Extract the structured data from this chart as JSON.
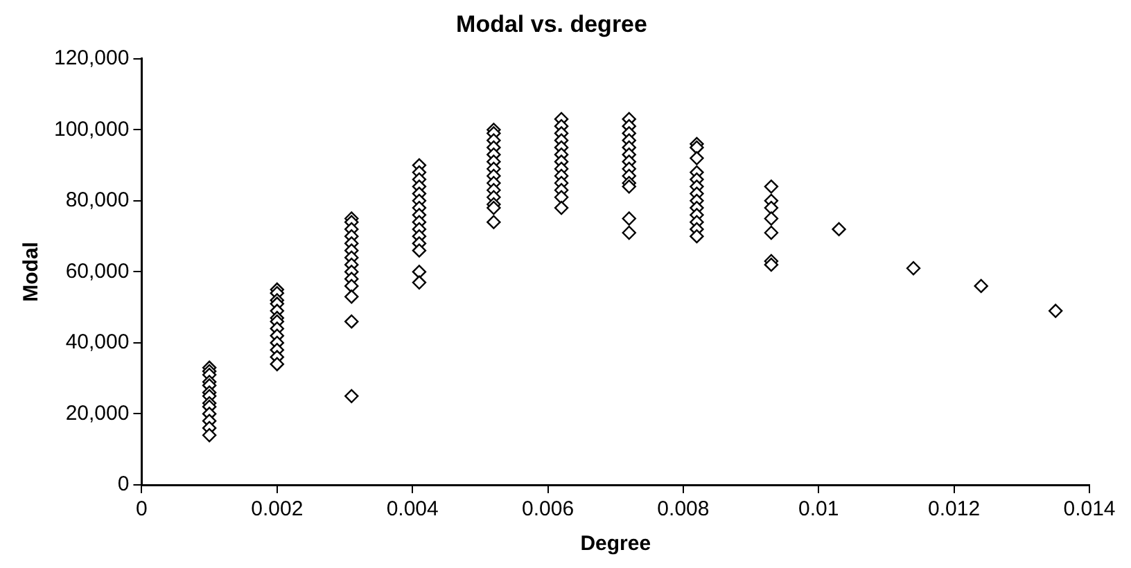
{
  "chart_data": {
    "type": "scatter",
    "title": "Modal vs. degree",
    "xlabel": "Degree",
    "ylabel": "Modal",
    "series": [
      {
        "color": "#000000",
        "x": [
          0.001,
          0.001,
          0.001,
          0.001,
          0.001,
          0.001,
          0.001,
          0.001,
          0.001,
          0.001,
          0.001,
          0.001,
          0.001,
          0.002,
          0.002,
          0.002,
          0.002,
          0.002,
          0.002,
          0.002,
          0.002,
          0.002,
          0.002,
          0.002,
          0.002,
          0.002,
          0.0031,
          0.0031,
          0.0031,
          0.0031,
          0.0031,
          0.0031,
          0.0031,
          0.0031,
          0.0031,
          0.0031,
          0.0031,
          0.0031,
          0.0031,
          0.0031,
          0.0041,
          0.0041,
          0.0041,
          0.0041,
          0.0041,
          0.0041,
          0.0041,
          0.0041,
          0.0041,
          0.0041,
          0.0041,
          0.0041,
          0.0041,
          0.0041,
          0.0041,
          0.0052,
          0.0052,
          0.0052,
          0.0052,
          0.0052,
          0.0052,
          0.0052,
          0.0052,
          0.0052,
          0.0052,
          0.0052,
          0.0052,
          0.0052,
          0.0052,
          0.0062,
          0.0062,
          0.0062,
          0.0062,
          0.0062,
          0.0062,
          0.0062,
          0.0062,
          0.0062,
          0.0062,
          0.0062,
          0.0062,
          0.0062,
          0.0072,
          0.0072,
          0.0072,
          0.0072,
          0.0072,
          0.0072,
          0.0072,
          0.0072,
          0.0072,
          0.0072,
          0.0072,
          0.0072,
          0.0072,
          0.0082,
          0.0082,
          0.0082,
          0.0082,
          0.0082,
          0.0082,
          0.0082,
          0.0082,
          0.0082,
          0.0082,
          0.0082,
          0.0082,
          0.0082,
          0.0093,
          0.0093,
          0.0093,
          0.0093,
          0.0093,
          0.0093,
          0.0093,
          0.0103,
          0.0114,
          0.0124,
          0.0135
        ],
        "values": [
          33000,
          32000,
          31000,
          29000,
          28000,
          26000,
          25000,
          23000,
          22000,
          20000,
          18000,
          16000,
          14000,
          55000,
          54000,
          52000,
          51000,
          49000,
          47000,
          46000,
          44000,
          42000,
          40000,
          38000,
          36000,
          34000,
          75000,
          74000,
          72000,
          70000,
          68000,
          66000,
          64000,
          62000,
          60000,
          58000,
          56000,
          53000,
          46000,
          25000,
          90000,
          88000,
          86000,
          84000,
          82000,
          80000,
          78000,
          76000,
          74000,
          72000,
          70000,
          68000,
          66000,
          60000,
          57000,
          100000,
          99000,
          97000,
          95000,
          93000,
          91000,
          89000,
          87000,
          85000,
          83000,
          81000,
          79000,
          78000,
          74000,
          103000,
          101000,
          99000,
          97000,
          95000,
          93000,
          91000,
          89000,
          87000,
          85000,
          83000,
          81000,
          78000,
          103000,
          101000,
          99000,
          97000,
          95000,
          93000,
          91000,
          89000,
          87000,
          85000,
          84000,
          75000,
          71000,
          96000,
          95000,
          92000,
          88000,
          86000,
          84000,
          82000,
          80000,
          78000,
          76000,
          74000,
          72000,
          70000,
          84000,
          80000,
          78000,
          75000,
          71000,
          63000,
          62000,
          72000,
          61000,
          56000,
          49000
        ]
      }
    ],
    "xlim": [
      0,
      0.014
    ],
    "xticks": [
      0,
      0.002,
      0.004,
      0.006,
      0.008,
      0.01,
      0.012,
      0.014
    ],
    "ylim": [
      0,
      120000
    ],
    "yticks": [
      0,
      {
        "value": 20000,
        "label": "20,000"
      },
      {
        "value": 40000,
        "label": "40,000"
      },
      {
        "value": 60000,
        "label": "60,000"
      },
      {
        "value": 80000,
        "label": "80,000"
      },
      {
        "value": 100000,
        "label": "100,000"
      },
      {
        "value": 120000,
        "label": "120,000"
      }
    ],
    "grid": false,
    "legend": false,
    "marker": "diamond"
  }
}
